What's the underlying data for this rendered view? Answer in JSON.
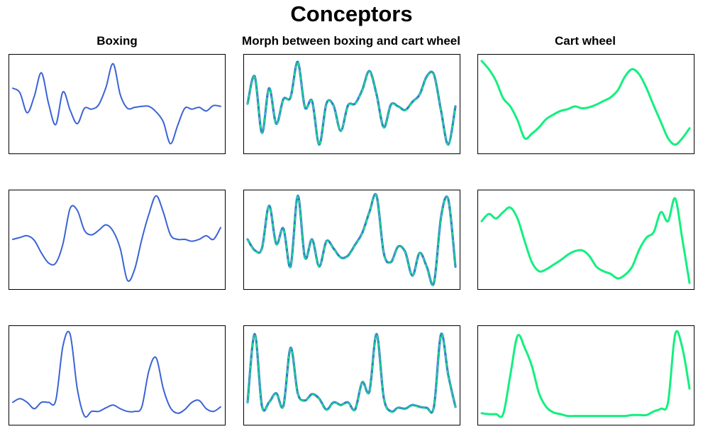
{
  "title": "Conceptors",
  "column_titles": [
    "Boxing",
    "Morph between boxing and cart wheel",
    "Cart wheel"
  ],
  "colors": {
    "boxing": "#3b63d6",
    "cartwheel": "#12f07e",
    "frame": "#000000"
  },
  "chart_data": {
    "type": "line",
    "title": "Conceptors",
    "grid": false,
    "legend": "none",
    "x": [
      0.0,
      0.0345,
      0.069,
      0.1034,
      0.1379,
      0.1724,
      0.2069,
      0.2414,
      0.2759,
      0.3103,
      0.3448,
      0.3793,
      0.4138,
      0.4483,
      0.4828,
      0.5172,
      0.5517,
      0.5862,
      0.6207,
      0.6552,
      0.6897,
      0.7241,
      0.7586,
      0.7931,
      0.8276,
      0.8621,
      0.8966,
      0.931,
      0.9655,
      1.0
    ],
    "xlim": [
      0,
      1
    ],
    "ylim": [
      0,
      1
    ],
    "boxing": [
      [
        0.67,
        0.62,
        0.4,
        0.58,
        0.84,
        0.5,
        0.27,
        0.63,
        0.43,
        0.28,
        0.45,
        0.44,
        0.49,
        0.68,
        0.94,
        0.6,
        0.45,
        0.46,
        0.47,
        0.47,
        0.41,
        0.3,
        0.06,
        0.26,
        0.45,
        0.44,
        0.46,
        0.42,
        0.48,
        0.47
      ],
      [
        0.5,
        0.52,
        0.54,
        0.49,
        0.35,
        0.24,
        0.24,
        0.45,
        0.84,
        0.82,
        0.6,
        0.55,
        0.6,
        0.66,
        0.59,
        0.4,
        0.05,
        0.17,
        0.5,
        0.78,
        0.98,
        0.8,
        0.55,
        0.5,
        0.5,
        0.48,
        0.5,
        0.54,
        0.5,
        0.63
      ],
      [
        0.2,
        0.24,
        0.2,
        0.13,
        0.2,
        0.2,
        0.22,
        0.82,
        0.95,
        0.35,
        0.05,
        0.1,
        0.1,
        0.14,
        0.17,
        0.13,
        0.1,
        0.1,
        0.15,
        0.55,
        0.69,
        0.35,
        0.14,
        0.08,
        0.12,
        0.2,
        0.22,
        0.13,
        0.1,
        0.15
      ]
    ],
    "cartwheel": [
      [
        0.97,
        0.88,
        0.75,
        0.56,
        0.47,
        0.32,
        0.12,
        0.17,
        0.24,
        0.33,
        0.38,
        0.42,
        0.44,
        0.47,
        0.45,
        0.46,
        0.49,
        0.53,
        0.57,
        0.65,
        0.8,
        0.88,
        0.82,
        0.67,
        0.48,
        0.3,
        0.12,
        0.05,
        0.12,
        0.23
      ],
      [
        0.7,
        0.78,
        0.73,
        0.8,
        0.85,
        0.73,
        0.48,
        0.25,
        0.15,
        0.17,
        0.22,
        0.27,
        0.33,
        0.37,
        0.38,
        0.32,
        0.2,
        0.15,
        0.12,
        0.07,
        0.11,
        0.2,
        0.39,
        0.52,
        0.58,
        0.8,
        0.7,
        0.95,
        0.5,
        0.02
      ],
      [
        0.08,
        0.07,
        0.07,
        0.07,
        0.5,
        0.93,
        0.8,
        0.6,
        0.3,
        0.15,
        0.09,
        0.07,
        0.05,
        0.05,
        0.05,
        0.05,
        0.05,
        0.05,
        0.05,
        0.05,
        0.05,
        0.06,
        0.06,
        0.06,
        0.1,
        0.13,
        0.2,
        0.95,
        0.8,
        0.35
      ]
    ],
    "morph": [
      [
        0.5,
        0.8,
        0.18,
        0.67,
        0.28,
        0.55,
        0.57,
        0.96,
        0.46,
        0.53,
        0.05,
        0.5,
        0.48,
        0.2,
        0.48,
        0.5,
        0.65,
        0.86,
        0.6,
        0.24,
        0.49,
        0.47,
        0.43,
        0.52,
        0.6,
        0.8,
        0.82,
        0.42,
        0.05,
        0.47
      ],
      [
        0.5,
        0.38,
        0.4,
        0.87,
        0.45,
        0.62,
        0.2,
        0.98,
        0.3,
        0.5,
        0.2,
        0.48,
        0.4,
        0.3,
        0.32,
        0.44,
        0.57,
        0.8,
        0.98,
        0.35,
        0.25,
        0.42,
        0.36,
        0.1,
        0.35,
        0.2,
        0.02,
        0.75,
        0.94,
        0.2
      ],
      [
        0.2,
        0.95,
        0.16,
        0.2,
        0.3,
        0.16,
        0.8,
        0.3,
        0.22,
        0.29,
        0.24,
        0.12,
        0.2,
        0.17,
        0.2,
        0.12,
        0.42,
        0.32,
        0.95,
        0.25,
        0.1,
        0.14,
        0.13,
        0.17,
        0.15,
        0.14,
        0.15,
        0.95,
        0.5,
        0.15
      ]
    ]
  }
}
